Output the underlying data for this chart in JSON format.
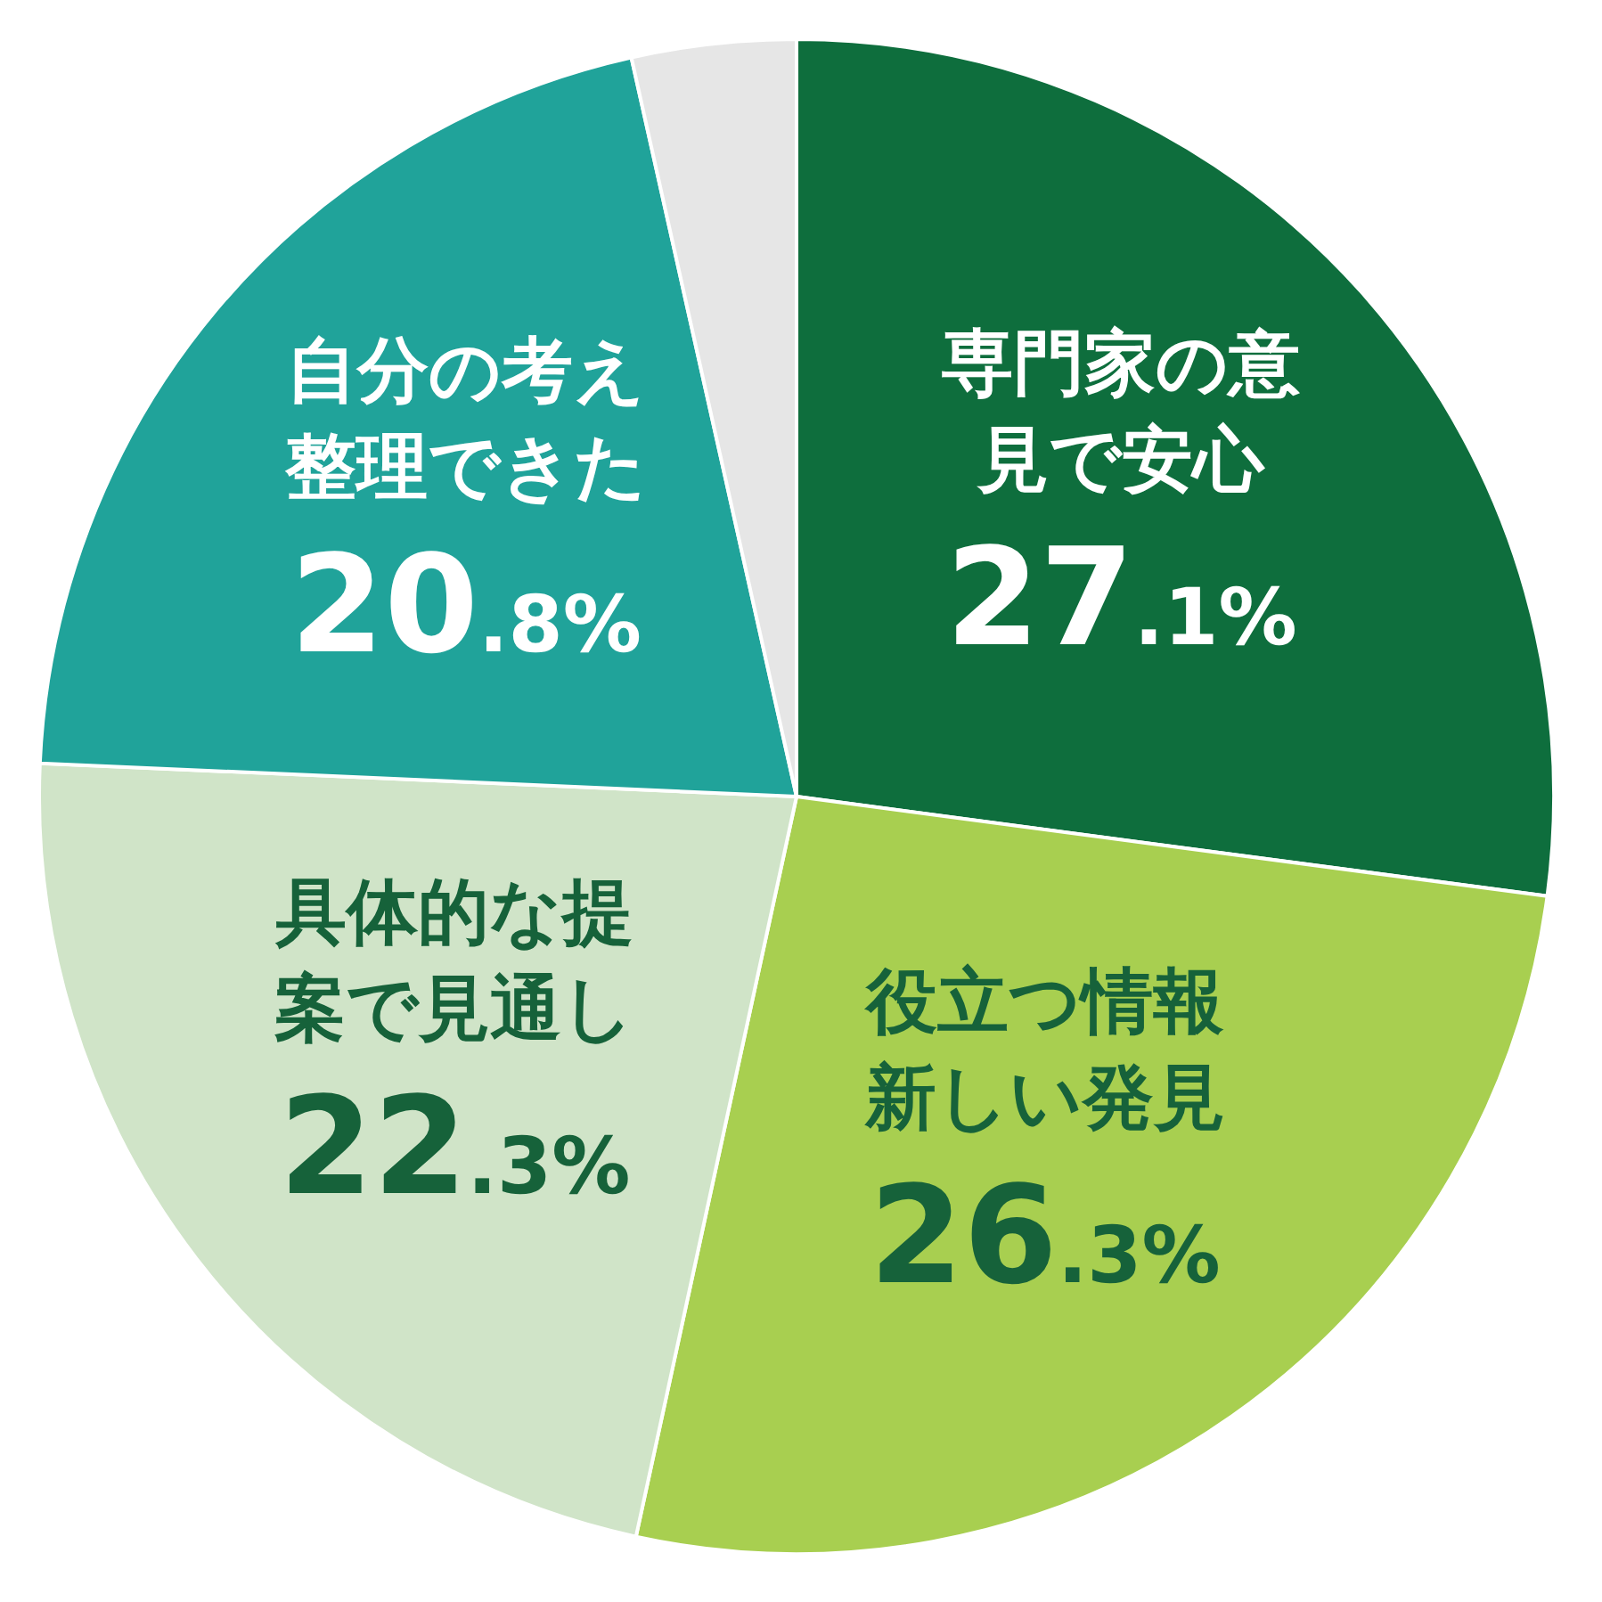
{
  "chart_data": {
    "type": "pie",
    "categories": [
      "専門家の意見で安心",
      "役立つ情報新しい発見",
      "具体的な提案で見通し",
      "自分の考え整理できた",
      null
    ],
    "values": [
      27.1,
      26.3,
      22.3,
      20.8,
      3.5
    ],
    "colors": [
      "#0e6e3d",
      "#a8cf50",
      "#d0e4c8",
      "#20a39a",
      "#e6e6e6"
    ],
    "value_labels": [
      "27.1%",
      "26.3%",
      "22.3%",
      "20.8%",
      null
    ]
  }
}
